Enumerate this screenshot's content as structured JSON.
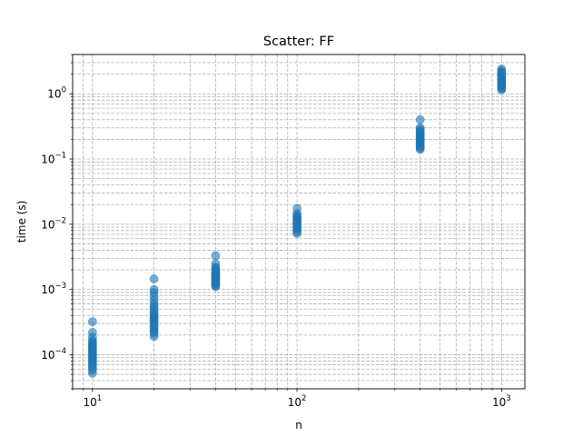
{
  "chart_data": {
    "type": "scatter",
    "title": "Scatter: FF",
    "xlabel": "n",
    "ylabel": "time (s)",
    "xscale": "log",
    "yscale": "log",
    "xlim": [
      8,
      1300
    ],
    "ylim": [
      3e-05,
      4.0
    ],
    "grid": true,
    "grid_style": "dashed",
    "marker_color": "#1f77b4",
    "marker_alpha": 0.6,
    "x_ticks": [
      {
        "value": 10,
        "base": "10",
        "exp": "1"
      },
      {
        "value": 100,
        "base": "10",
        "exp": "2"
      },
      {
        "value": 1000,
        "base": "10",
        "exp": "3"
      }
    ],
    "y_ticks": [
      {
        "value": 0.0001,
        "base": "10",
        "exp": "−4"
      },
      {
        "value": 0.001,
        "base": "10",
        "exp": "−3"
      },
      {
        "value": 0.01,
        "base": "10",
        "exp": "−2"
      },
      {
        "value": 0.1,
        "base": "10",
        "exp": "−1"
      },
      {
        "value": 1,
        "base": "10",
        "exp": "0"
      }
    ],
    "series": [
      {
        "x": 10,
        "y": [
          5.2e-05,
          5.8e-05,
          6.3e-05,
          6.8e-05,
          7.2e-05,
          7.7e-05,
          8.2e-05,
          8.7e-05,
          9.2e-05,
          9.7e-05,
          0.000102,
          0.000108,
          0.000113,
          0.000118,
          0.000124,
          0.00013,
          0.000137,
          0.000145,
          0.000155,
          0.000165,
          0.000185,
          0.00022,
          0.00032
        ]
      },
      {
        "x": 20,
        "y": [
          0.00019,
          0.00021,
          0.000225,
          0.00024,
          0.00026,
          0.00028,
          0.0003,
          0.00032,
          0.00034,
          0.00036,
          0.00038,
          0.0004,
          0.00043,
          0.00046,
          0.0005,
          0.00055,
          0.0006,
          0.00068,
          0.00078,
          0.0009,
          0.001,
          0.00145
        ]
      },
      {
        "x": 40,
        "y": [
          0.0011,
          0.00115,
          0.0012,
          0.00125,
          0.0013,
          0.00135,
          0.0014,
          0.00145,
          0.0015,
          0.00155,
          0.0016,
          0.00165,
          0.0017,
          0.00175,
          0.0018,
          0.0019,
          0.002,
          0.0021,
          0.0022,
          0.0025,
          0.0033
        ]
      },
      {
        "x": 100,
        "y": [
          0.0072,
          0.0077,
          0.0082,
          0.0087,
          0.0092,
          0.0097,
          0.0102,
          0.0107,
          0.0112,
          0.0118,
          0.0124,
          0.013,
          0.0136,
          0.0145,
          0.0175
        ]
      },
      {
        "x": 400,
        "y": [
          0.14,
          0.148,
          0.155,
          0.162,
          0.17,
          0.178,
          0.186,
          0.194,
          0.202,
          0.21,
          0.218,
          0.226,
          0.234,
          0.242,
          0.25,
          0.26,
          0.27,
          0.285,
          0.3,
          0.4
        ]
      },
      {
        "x": 1000,
        "y": [
          1.15,
          1.2,
          1.25,
          1.3,
          1.35,
          1.4,
          1.45,
          1.5,
          1.55,
          1.6,
          1.65,
          1.7,
          1.75,
          1.82,
          1.9,
          1.98,
          2.06,
          2.15,
          2.25,
          2.4
        ]
      }
    ]
  }
}
